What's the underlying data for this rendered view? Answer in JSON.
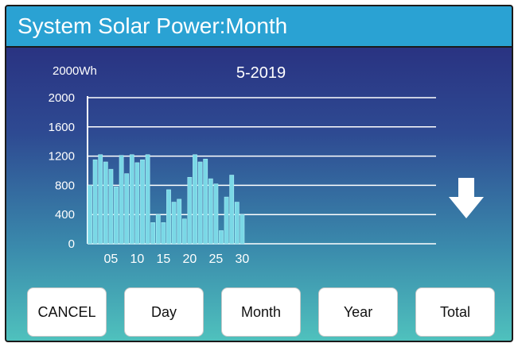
{
  "title": "System Solar Power:Month",
  "buttons": {
    "cancel": "CANCEL",
    "day": "Day",
    "month": "Month",
    "year": "Year",
    "total": "Total"
  },
  "colors": {
    "title_bar": "#2aa2d3",
    "bar": "#7ad8e6",
    "bar_outline": "#a9eef5",
    "grid": "#ffffff",
    "arrow": "#ffffff"
  },
  "icons": {
    "scroll": "arrow-down-icon"
  },
  "chart_data": {
    "type": "bar",
    "title": "5-2019",
    "unit_label": "2000Wh",
    "ylim": [
      0,
      2000
    ],
    "y_ticks": [
      0,
      400,
      800,
      1200,
      1600,
      2000
    ],
    "x_tick_labels": [
      {
        "day": 5,
        "label": "05"
      },
      {
        "day": 10,
        "label": "10"
      },
      {
        "day": 15,
        "label": "15"
      },
      {
        "day": 20,
        "label": "20"
      },
      {
        "day": 25,
        "label": "25"
      },
      {
        "day": 30,
        "label": "30"
      }
    ],
    "days": [
      1,
      2,
      3,
      4,
      5,
      6,
      7,
      8,
      9,
      10,
      11,
      12,
      13,
      14,
      15,
      16,
      17,
      18,
      19,
      20,
      21,
      22,
      23,
      24,
      25,
      26,
      27,
      28,
      29,
      30,
      31
    ],
    "values": [
      800,
      1150,
      1220,
      1120,
      1020,
      780,
      1210,
      960,
      1220,
      1110,
      1150,
      1220,
      290,
      400,
      290,
      740,
      570,
      610,
      340,
      910,
      1220,
      1120,
      1160,
      890,
      820,
      180,
      640,
      940,
      570,
      400,
      0
    ],
    "grid": true,
    "legend": "none"
  }
}
